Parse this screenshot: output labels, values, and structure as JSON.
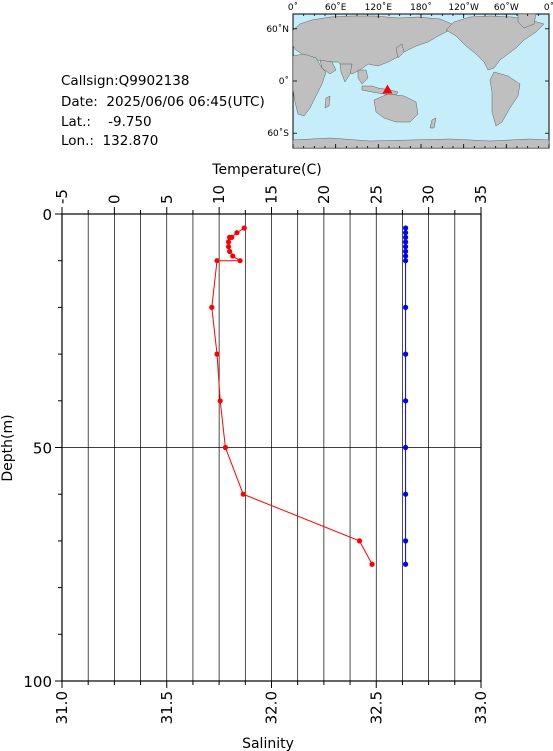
{
  "info": {
    "callsign_label": "Callsign:",
    "callsign": "Q9902138",
    "date_label": "Date:",
    "date": "2025/06/06 06:45(UTC)",
    "lat_label": "Lat.:",
    "lat": "-9.750",
    "lon_label": "Lon.:",
    "lon": "132.870"
  },
  "map": {
    "top_labels": [
      "0˚",
      "60˚E",
      "120˚E",
      "180˚",
      "120˚W",
      "60˚W",
      "0˚"
    ],
    "left_labels": [
      "60˚N",
      "0˚",
      "60˚S"
    ],
    "ocean_color": "#c6eefa",
    "land_color": "#bfbfbf",
    "marker_color": "#ff0000",
    "marker": {
      "lon": 132.87,
      "lat": -9.75
    }
  },
  "chart_data": {
    "type": "line",
    "ylabel": "Depth(m)",
    "ylim": [
      100,
      0
    ],
    "yticks": [
      "0",
      "50",
      "100"
    ],
    "grid": true,
    "temperature_axis": {
      "label": "Temperature(C)",
      "lim": [
        -5,
        35
      ],
      "ticks": [
        "-5",
        "0",
        "5",
        "10",
        "15",
        "20",
        "25",
        "30",
        "35"
      ]
    },
    "salinity_axis": {
      "label": "Salinity",
      "lim": [
        31.0,
        33.0
      ],
      "ticks": [
        "31.0",
        "31.5",
        "32.0",
        "32.5",
        "33.0"
      ]
    },
    "series": [
      {
        "axis": "temperature",
        "color": "#ff0000",
        "depth": [
          3,
          4,
          5,
          5,
          6,
          7,
          8,
          9,
          10,
          10,
          20,
          30,
          40,
          50,
          60,
          70,
          75
        ],
        "values": [
          12.4,
          11.7,
          11.2,
          11.0,
          10.9,
          10.9,
          11.0,
          11.3,
          12.0,
          9.8,
          9.3,
          9.8,
          10.1,
          10.6,
          12.3,
          23.4,
          24.6
        ]
      },
      {
        "axis": "salinity",
        "color": "#0000ff",
        "depth": [
          3,
          4,
          5,
          6,
          7,
          8,
          9,
          10,
          20,
          30,
          40,
          50,
          60,
          70,
          75
        ],
        "values": [
          32.64,
          32.64,
          32.64,
          32.64,
          32.64,
          32.64,
          32.64,
          32.64,
          32.64,
          32.64,
          32.64,
          32.64,
          32.64,
          32.64,
          32.64
        ]
      }
    ]
  }
}
